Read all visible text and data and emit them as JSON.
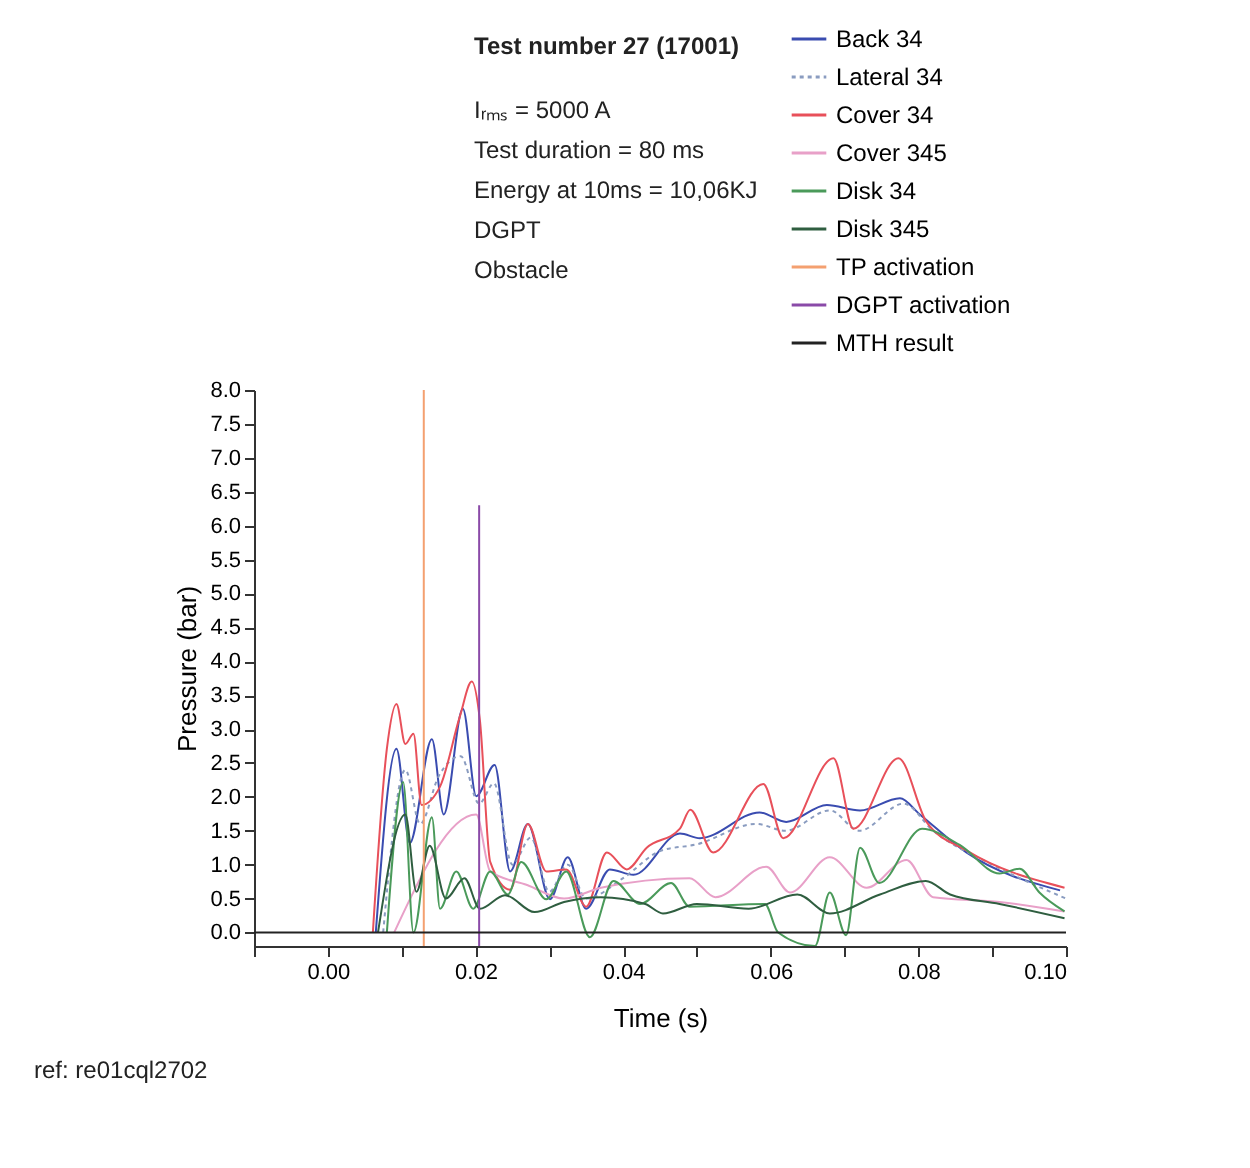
{
  "chart_data": {
    "type": "line",
    "title": "Test number 27 (17001)",
    "xlabel": "Time (s)",
    "ylabel": "Pressure (bar)",
    "xlim": [
      -0.01,
      0.1
    ],
    "xticks": [
      {
        "value": -0.01,
        "label": null
      },
      {
        "value": 0,
        "label": "0.00"
      },
      {
        "value": 0.01,
        "label": null
      },
      {
        "value": 0.02,
        "label": "0.02"
      },
      {
        "value": 0.03,
        "label": null
      },
      {
        "value": 0.04,
        "label": "0.04"
      },
      {
        "value": 0.05,
        "label": null
      },
      {
        "value": 0.06,
        "label": "0.06"
      },
      {
        "value": 0.07,
        "label": null
      },
      {
        "value": 0.08,
        "label": "0.08"
      },
      {
        "value": 0.09,
        "label": null
      },
      {
        "value": 0.1,
        "label": "0.10"
      }
    ],
    "ylim": [
      -0.2,
      8.0
    ],
    "yticks": [
      {
        "value": 0,
        "label": "0.0"
      },
      0.5,
      {
        "value": 1,
        "label": "1.0"
      },
      1.5,
      {
        "value": 2,
        "label": "2.0"
      },
      2.5,
      {
        "value": 3,
        "label": "3.0"
      },
      3.5,
      {
        "value": 4,
        "label": "4.0"
      },
      4.5,
      {
        "value": 5,
        "label": "5.0"
      },
      5.5,
      {
        "value": 6,
        "label": "6.0"
      },
      6.5,
      {
        "value": 7,
        "label": "7.0"
      },
      7.5,
      {
        "value": 8,
        "label": "8.0"
      }
    ],
    "grid": false,
    "legend": "top right",
    "marker": "none",
    "annotations": [
      "Iᵣₘₛ = 5000 A",
      "Test duration = 80 ms",
      "Energy at 10ms = 10,06KJ",
      "DGPT",
      "Obstacle",
      "ref: re01cql2702"
    ],
    "series": [
      {
        "name": "Back 34",
        "color": "#3a4cb0",
        "x": [
          0.0065,
          0.0093,
          0.0111,
          0.0141,
          0.0157,
          0.0183,
          0.0201,
          0.0226,
          0.0247,
          0.0271,
          0.0301,
          0.0325,
          0.035,
          0.0382,
          0.0414,
          0.0477,
          0.0504,
          0.0585,
          0.0621,
          0.0676,
          0.0721,
          0.0775,
          0.0802,
          0.0865,
          0.0992
        ],
        "values": [
          0.0,
          2.71,
          1.32,
          2.85,
          1.74,
          3.3,
          2.01,
          2.47,
          0.9,
          1.6,
          0.49,
          1.11,
          0.35,
          0.93,
          0.85,
          1.46,
          1.39,
          1.77,
          1.63,
          1.88,
          1.8,
          1.98,
          1.74,
          1.18,
          0.62
        ]
      },
      {
        "name": "Lateral 34",
        "color": "#8a9cc0",
        "line_style": "dotted",
        "x": [
          0.0075,
          0.0105,
          0.0125,
          0.015,
          0.018,
          0.0205,
          0.0225,
          0.025,
          0.0275,
          0.03,
          0.0325,
          0.035,
          0.04,
          0.045,
          0.05,
          0.058,
          0.062,
          0.068,
          0.072,
          0.078,
          0.082,
          0.09,
          0.1
        ],
        "values": [
          0.0,
          2.4,
          1.6,
          2.3,
          2.6,
          1.9,
          2.2,
          1.0,
          1.4,
          0.6,
          1.0,
          0.5,
          0.8,
          1.2,
          1.3,
          1.6,
          1.5,
          1.8,
          1.5,
          1.9,
          1.5,
          1.0,
          0.5
        ]
      },
      {
        "name": "Cover 34",
        "color": "#e8505a",
        "x": [
          0.0061,
          0.008,
          0.0093,
          0.0105,
          0.0116,
          0.0127,
          0.0152,
          0.0179,
          0.0195,
          0.0206,
          0.022,
          0.0247,
          0.0271,
          0.0296,
          0.0323,
          0.035,
          0.0378,
          0.0405,
          0.0432,
          0.0477,
          0.0491,
          0.0522,
          0.059,
          0.0617,
          0.0685,
          0.0712,
          0.0773,
          0.0811,
          0.0865,
          0.0998
        ],
        "values": [
          0.0,
          2.71,
          3.37,
          2.78,
          2.93,
          1.88,
          2.15,
          3.19,
          3.7,
          3.13,
          1.04,
          0.63,
          1.6,
          0.9,
          0.93,
          0.38,
          1.18,
          0.93,
          1.25,
          1.53,
          1.81,
          1.18,
          2.19,
          1.39,
          2.57,
          1.53,
          2.57,
          1.63,
          1.21,
          0.66
        ]
      },
      {
        "name": "Cover 345",
        "color": "#e8a0c8",
        "x": [
          0.009,
          0.0201,
          0.022,
          0.027,
          0.032,
          0.037,
          0.049,
          0.0525,
          0.0594,
          0.0626,
          0.068,
          0.073,
          0.0784,
          0.082,
          0.091,
          0.0998
        ],
        "values": [
          0.0,
          1.74,
          0.9,
          0.7,
          0.5,
          0.66,
          0.8,
          0.52,
          0.97,
          0.59,
          1.11,
          0.66,
          1.07,
          0.52,
          0.45,
          0.31
        ]
      },
      {
        "name": "Disk 34",
        "color": "#4a9a5a",
        "x": [
          0.008,
          0.0102,
          0.0116,
          0.0141,
          0.0152,
          0.0174,
          0.0197,
          0.022,
          0.0244,
          0.0262,
          0.0296,
          0.0323,
          0.0355,
          0.0387,
          0.0423,
          0.0465,
          0.049,
          0.0592,
          0.061,
          0.066,
          0.068,
          0.0702,
          0.0721,
          0.0747,
          0.0805,
          0.0856,
          0.091,
          0.0937,
          0.0964,
          0.0998
        ],
        "values": [
          0.0,
          2.22,
          0.0,
          1.7,
          0.35,
          0.9,
          0.35,
          0.9,
          0.56,
          1.04,
          0.49,
          0.9,
          -0.07,
          0.76,
          0.42,
          0.73,
          0.38,
          0.42,
          0.0,
          -0.2,
          0.59,
          -0.04,
          1.25,
          0.73,
          1.53,
          1.29,
          0.87,
          0.94,
          0.59,
          0.31
        ]
      },
      {
        "name": "Disk 345",
        "color": "#2f5e40",
        "x": [
          0.0068,
          0.0105,
          0.012,
          0.0138,
          0.016,
          0.0185,
          0.0206,
          0.024,
          0.028,
          0.032,
          0.037,
          0.043,
          0.0454,
          0.05,
          0.057,
          0.0636,
          0.068,
          0.0748,
          0.081,
          0.0843,
          0.091,
          0.0998
        ],
        "values": [
          0.0,
          1.74,
          0.6,
          1.28,
          0.5,
          0.8,
          0.35,
          0.55,
          0.3,
          0.45,
          0.52,
          0.42,
          0.28,
          0.42,
          0.35,
          0.56,
          0.28,
          0.56,
          0.76,
          0.56,
          0.42,
          0.21
        ]
      },
      {
        "name": "TP activation",
        "color": "#f4a070",
        "x": [
          0.013,
          0.013
        ],
        "values": [
          -0.2,
          8.0
        ]
      },
      {
        "name": "DGPT activation",
        "color": "#8a4aa8",
        "x": [
          0.0205,
          0.0205
        ],
        "values": [
          -0.2,
          6.3
        ]
      },
      {
        "name": "MTH result",
        "color": "#222222",
        "x": [
          -0.01,
          0.1
        ],
        "values": [
          0.0,
          0.0
        ]
      }
    ]
  }
}
